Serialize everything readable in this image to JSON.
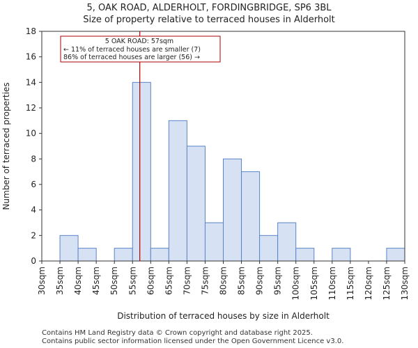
{
  "chart_data": {
    "type": "bar",
    "title": "5, OAK ROAD, ALDERHOLT, FORDINGBRIDGE, SP6 3BL",
    "subtitle": "Size of property relative to terraced houses in Alderholt",
    "xlabel": "Distribution of terraced houses by size in Alderholt",
    "ylabel": "Number of terraced properties",
    "bin_edges": [
      30,
      35,
      40,
      45,
      50,
      55,
      60,
      65,
      70,
      75,
      80,
      85,
      90,
      95,
      100,
      105,
      110,
      115,
      120,
      125,
      130
    ],
    "tick_labels": [
      "30sqm",
      "35sqm",
      "40sqm",
      "45sqm",
      "50sqm",
      "55sqm",
      "60sqm",
      "65sqm",
      "70sqm",
      "75sqm",
      "80sqm",
      "85sqm",
      "90sqm",
      "95sqm",
      "100sqm",
      "105sqm",
      "110sqm",
      "115sqm",
      "120sqm",
      "125sqm",
      "130sqm"
    ],
    "values": [
      0,
      2,
      1,
      0,
      1,
      14,
      1,
      11,
      9,
      3,
      8,
      7,
      2,
      3,
      1,
      0,
      1,
      0,
      0,
      1
    ],
    "ylim": [
      0,
      18
    ],
    "yticks": [
      0,
      2,
      4,
      6,
      8,
      10,
      12,
      14,
      16,
      18
    ],
    "marker": {
      "value": 57,
      "label": "5 OAK ROAD: 57sqm",
      "line2": "← 11% of terraced houses are smaller (7)",
      "line3": "86% of terraced houses are larger (56) →",
      "color": "#aa0000"
    },
    "bar_fill": "#d7e1f4",
    "bar_stroke": "#5a84c8"
  },
  "footer": {
    "line1": "Contains HM Land Registry data © Crown copyright and database right 2025.",
    "line2": "Contains public sector information licensed under the Open Government Licence v3.0."
  }
}
